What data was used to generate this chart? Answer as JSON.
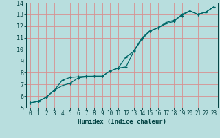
{
  "title": "",
  "xlabel": "Humidex (Indice chaleur)",
  "ylabel": "",
  "xlim": [
    -0.5,
    23.5
  ],
  "ylim": [
    5,
    14
  ],
  "x_ticks": [
    0,
    1,
    2,
    3,
    4,
    5,
    6,
    7,
    8,
    9,
    10,
    11,
    12,
    13,
    14,
    15,
    16,
    17,
    18,
    19,
    20,
    21,
    22,
    23
  ],
  "y_ticks": [
    5,
    6,
    7,
    8,
    9,
    10,
    11,
    12,
    13,
    14
  ],
  "background_color": "#b8dede",
  "grid_color": "#d89090",
  "line_color": "#006868",
  "line1_x": [
    0,
    1,
    2,
    3,
    4,
    5,
    6,
    7,
    8,
    9,
    10,
    11,
    12,
    13,
    14,
    15,
    16,
    17,
    18,
    19,
    20,
    21,
    22,
    23
  ],
  "line1_y": [
    5.4,
    5.55,
    5.9,
    6.5,
    6.9,
    7.1,
    7.55,
    7.65,
    7.7,
    7.7,
    8.15,
    8.4,
    9.35,
    9.85,
    10.9,
    11.55,
    11.85,
    12.2,
    12.4,
    13.0,
    13.3,
    13.0,
    13.2,
    13.65
  ],
  "line2_x": [
    0,
    1,
    2,
    3,
    4,
    5,
    6,
    7,
    8,
    9,
    10,
    11,
    12,
    13,
    14,
    15,
    16,
    17,
    18,
    19,
    20,
    21,
    22,
    23
  ],
  "line2_y": [
    5.4,
    5.55,
    5.9,
    6.5,
    7.35,
    7.6,
    7.65,
    7.7,
    7.7,
    7.7,
    8.15,
    8.4,
    8.5,
    9.9,
    11.0,
    11.6,
    11.85,
    12.3,
    12.5,
    12.9,
    13.3,
    13.0,
    13.2,
    13.65
  ],
  "xlabel_fontsize": 6.5,
  "tick_fontsize": 5.5,
  "spine_color": "#004040"
}
